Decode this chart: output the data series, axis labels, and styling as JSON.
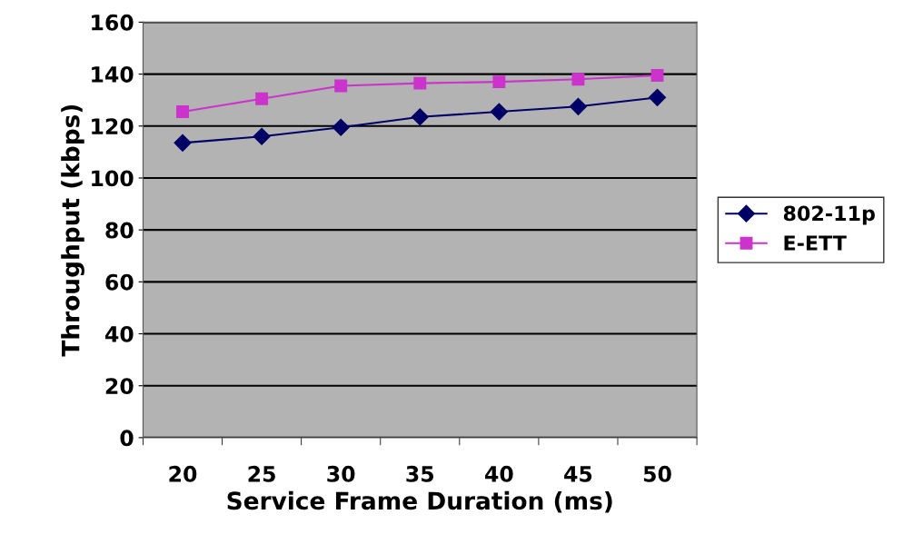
{
  "chart_data": {
    "type": "line",
    "xlabel": "Service Frame Duration (ms)",
    "ylabel": "Throughput (kbps)",
    "categories": [
      "20",
      "25",
      "30",
      "35",
      "40",
      "45",
      "50"
    ],
    "series": [
      {
        "name": "802-11p",
        "color": "#000066",
        "marker": "diamond",
        "values": [
          113.5,
          116,
          119.5,
          123.5,
          125.5,
          127.5,
          131
        ]
      },
      {
        "name": "E-ETT",
        "color": "#cc33cc",
        "marker": "square",
        "values": [
          125.5,
          130.5,
          135.5,
          136.5,
          137,
          138,
          139.5
        ]
      }
    ],
    "ylim": [
      0,
      160
    ],
    "yticks": [
      0,
      20,
      40,
      60,
      80,
      100,
      120,
      140,
      160
    ],
    "grid": "y",
    "legend": "right"
  }
}
